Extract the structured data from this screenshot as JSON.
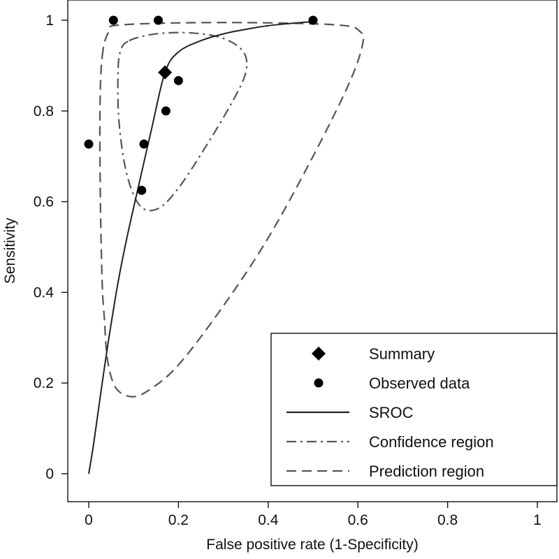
{
  "chart_data": {
    "type": "scatter",
    "title": "",
    "xlabel": "False positive rate (1-Specificity)",
    "ylabel": "Sensitivity",
    "xlim": [
      0,
      1
    ],
    "ylim": [
      0,
      1
    ],
    "x_ticks": [
      0,
      0.2,
      0.4,
      0.6,
      0.8,
      1
    ],
    "x_tick_labels": [
      "0",
      "0.2",
      "0.4",
      "0.6",
      "0.8",
      "1"
    ],
    "y_ticks": [
      0,
      0.2,
      0.4,
      0.6,
      0.8,
      1
    ],
    "y_tick_labels": [
      "0",
      "0.2",
      "0.4",
      "0.6",
      "0.8",
      "1"
    ],
    "grid": false,
    "legend_position": "bottom-right",
    "series": [
      {
        "name": "Summary",
        "kind": "marker",
        "marker": "diamond",
        "points": [
          {
            "x": 0.17,
            "y": 0.885
          }
        ]
      },
      {
        "name": "Observed data",
        "kind": "marker",
        "marker": "circle",
        "points": [
          {
            "x": 0.055,
            "y": 1.0
          },
          {
            "x": 0.155,
            "y": 1.0
          },
          {
            "x": 0.5,
            "y": 1.0
          },
          {
            "x": 0.0,
            "y": 0.727
          },
          {
            "x": 0.2,
            "y": 0.867
          },
          {
            "x": 0.172,
            "y": 0.8
          },
          {
            "x": 0.123,
            "y": 0.727
          },
          {
            "x": 0.118,
            "y": 0.625
          }
        ]
      },
      {
        "name": "SROC",
        "kind": "line",
        "dash": "solid",
        "points": [
          {
            "x": 0.0,
            "y": 0.0
          },
          {
            "x": 0.01,
            "y": 0.06
          },
          {
            "x": 0.02,
            "y": 0.13
          },
          {
            "x": 0.03,
            "y": 0.2
          },
          {
            "x": 0.045,
            "y": 0.3
          },
          {
            "x": 0.065,
            "y": 0.42
          },
          {
            "x": 0.085,
            "y": 0.52
          },
          {
            "x": 0.11,
            "y": 0.63
          },
          {
            "x": 0.14,
            "y": 0.76
          },
          {
            "x": 0.17,
            "y": 0.885
          },
          {
            "x": 0.2,
            "y": 0.93
          },
          {
            "x": 0.25,
            "y": 0.955
          },
          {
            "x": 0.3,
            "y": 0.97
          },
          {
            "x": 0.35,
            "y": 0.98
          },
          {
            "x": 0.4,
            "y": 0.988
          },
          {
            "x": 0.45,
            "y": 0.993
          },
          {
            "x": 0.5,
            "y": 0.997
          }
        ]
      },
      {
        "name": "Confidence region",
        "kind": "closed-curve",
        "dash": "dash-dot",
        "points": [
          {
            "x": 0.09,
            "y": 0.955
          },
          {
            "x": 0.15,
            "y": 0.97
          },
          {
            "x": 0.23,
            "y": 0.972
          },
          {
            "x": 0.3,
            "y": 0.96
          },
          {
            "x": 0.345,
            "y": 0.93
          },
          {
            "x": 0.35,
            "y": 0.885
          },
          {
            "x": 0.32,
            "y": 0.82
          },
          {
            "x": 0.26,
            "y": 0.72
          },
          {
            "x": 0.2,
            "y": 0.63
          },
          {
            "x": 0.155,
            "y": 0.585
          },
          {
            "x": 0.115,
            "y": 0.59
          },
          {
            "x": 0.085,
            "y": 0.66
          },
          {
            "x": 0.068,
            "y": 0.77
          },
          {
            "x": 0.065,
            "y": 0.87
          },
          {
            "x": 0.07,
            "y": 0.93
          }
        ]
      },
      {
        "name": "Prediction region",
        "kind": "closed-curve",
        "dash": "dashed",
        "points": [
          {
            "x": 0.03,
            "y": 0.92
          },
          {
            "x": 0.045,
            "y": 0.975
          },
          {
            "x": 0.075,
            "y": 0.99
          },
          {
            "x": 0.3,
            "y": 0.995
          },
          {
            "x": 0.55,
            "y": 0.99
          },
          {
            "x": 0.605,
            "y": 0.975
          },
          {
            "x": 0.61,
            "y": 0.945
          },
          {
            "x": 0.58,
            "y": 0.86
          },
          {
            "x": 0.5,
            "y": 0.7
          },
          {
            "x": 0.4,
            "y": 0.52
          },
          {
            "x": 0.3,
            "y": 0.37
          },
          {
            "x": 0.2,
            "y": 0.24
          },
          {
            "x": 0.135,
            "y": 0.185
          },
          {
            "x": 0.095,
            "y": 0.17
          },
          {
            "x": 0.06,
            "y": 0.19
          },
          {
            "x": 0.042,
            "y": 0.25
          },
          {
            "x": 0.035,
            "y": 0.34
          },
          {
            "x": 0.03,
            "y": 0.42
          },
          {
            "x": 0.026,
            "y": 0.6
          },
          {
            "x": 0.025,
            "y": 0.8
          }
        ]
      }
    ]
  }
}
